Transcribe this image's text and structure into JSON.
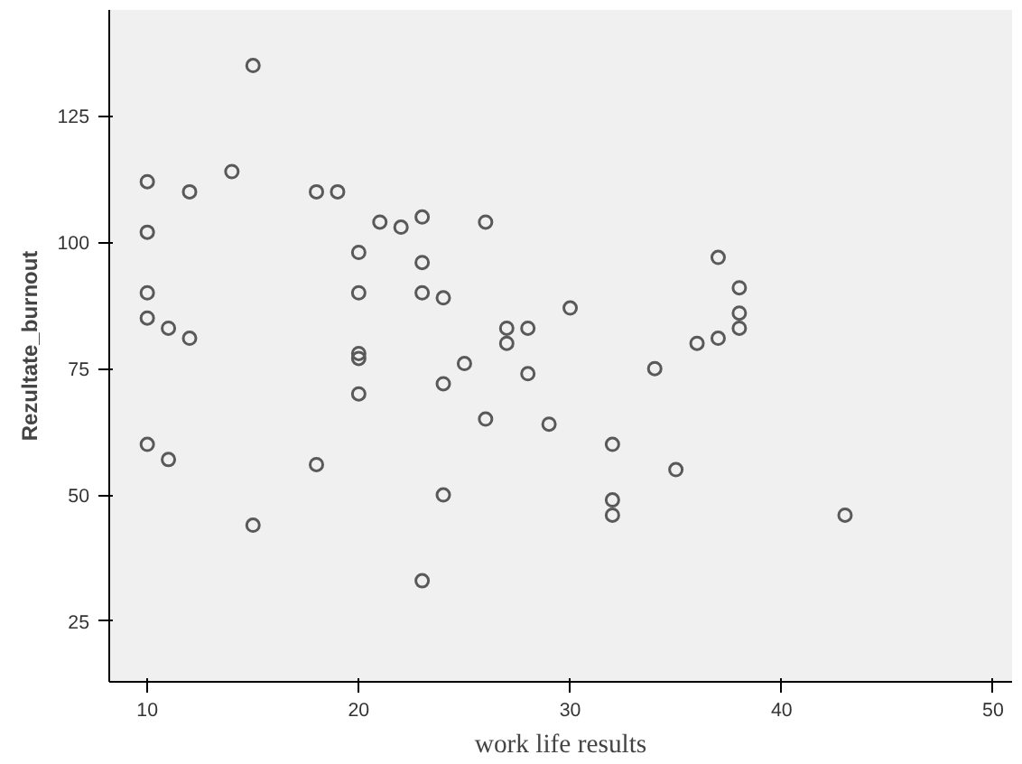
{
  "chart_data": {
    "type": "scatter",
    "xlabel": "work life results",
    "ylabel": "Rezultate_burnout",
    "x": [
      15,
      10,
      12,
      14,
      18,
      19,
      21,
      22,
      23,
      26,
      10,
      20,
      23,
      37,
      10,
      20,
      23,
      24,
      10,
      11,
      12,
      38,
      38,
      38,
      37,
      36,
      30,
      27,
      28,
      27,
      20,
      20,
      25,
      24,
      28,
      34,
      20,
      26,
      29,
      10,
      11,
      18,
      32,
      35,
      24,
      32,
      32,
      43,
      15,
      23
    ],
    "series": [
      {
        "color": "#595959",
        "values": [
          135,
          112,
          110,
          114,
          110,
          110,
          104,
          103,
          105,
          104,
          102,
          98,
          96,
          97,
          90,
          90,
          90,
          89,
          85,
          83,
          81,
          91,
          86,
          83,
          81,
          80,
          87,
          83,
          83,
          80,
          78,
          77,
          76,
          72,
          74,
          75,
          70,
          65,
          64,
          60,
          57,
          56,
          60,
          55,
          50,
          49,
          46,
          46,
          44,
          33
        ]
      }
    ],
    "xlim": [
      8.2,
      50.9
    ],
    "ylim": [
      13,
      146
    ],
    "xticks": [
      10,
      20,
      30,
      40,
      50
    ],
    "yticks": [
      25,
      50,
      75,
      100,
      125
    ],
    "grid": false,
    "marker": "circle"
  }
}
